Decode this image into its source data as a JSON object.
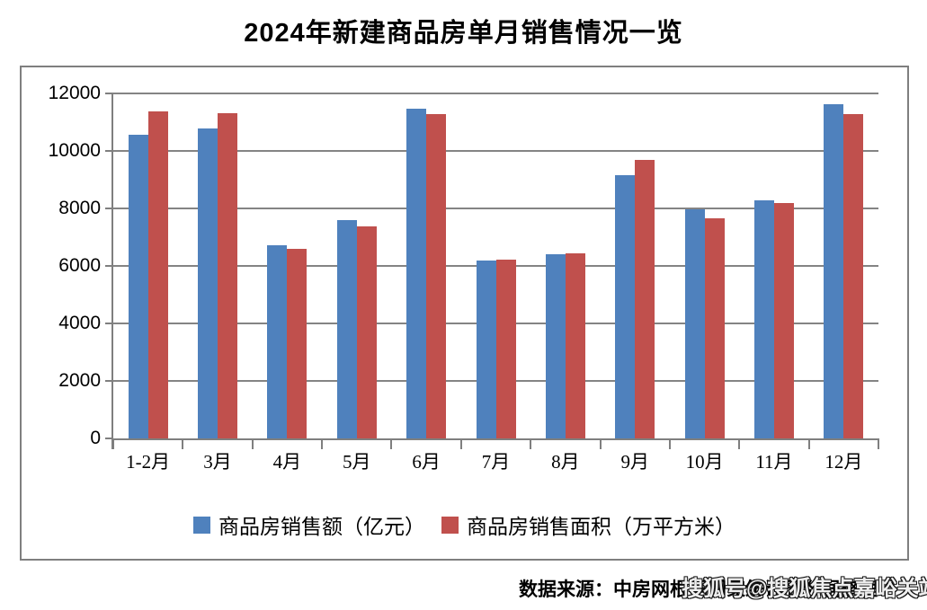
{
  "title": "2024年新建商品房单月销售情况一览",
  "source_note": "数据来源：中房网根据国家统计局数据整理",
  "watermark": "搜狐号@搜狐焦点嘉峪关站",
  "colors": {
    "series_blue": "#4F81BD",
    "series_red": "#C0504D",
    "gridline": "#848484",
    "axis": "#7f7f7f",
    "border": "#7f7f7f",
    "text": "#000000"
  },
  "chart_data": {
    "type": "bar",
    "title": "2024年新建商品房单月销售情况一览",
    "categories": [
      "1-2月",
      "3月",
      "4月",
      "5月",
      "6月",
      "7月",
      "8月",
      "9月",
      "10月",
      "11月",
      "12月"
    ],
    "series": [
      {
        "name": "商品房销售额（亿元）",
        "color": "#4F81BD",
        "values": [
          10566,
          10789,
          6712,
          7598,
          11468,
          6197,
          6393,
          9157,
          7975,
          8270,
          11625
        ]
      },
      {
        "name": "商品房销售面积（万平方米）",
        "color": "#C0504D",
        "values": [
          11369,
          11299,
          6584,
          7390,
          11274,
          6233,
          6453,
          9682,
          7646,
          8188,
          11267
        ]
      }
    ],
    "xlabel": "",
    "ylabel": "",
    "ylim": [
      0,
      12000
    ],
    "yticks": [
      0,
      2000,
      4000,
      6000,
      8000,
      10000,
      12000
    ],
    "grid": "horizontal",
    "legend_position": "bottom"
  }
}
